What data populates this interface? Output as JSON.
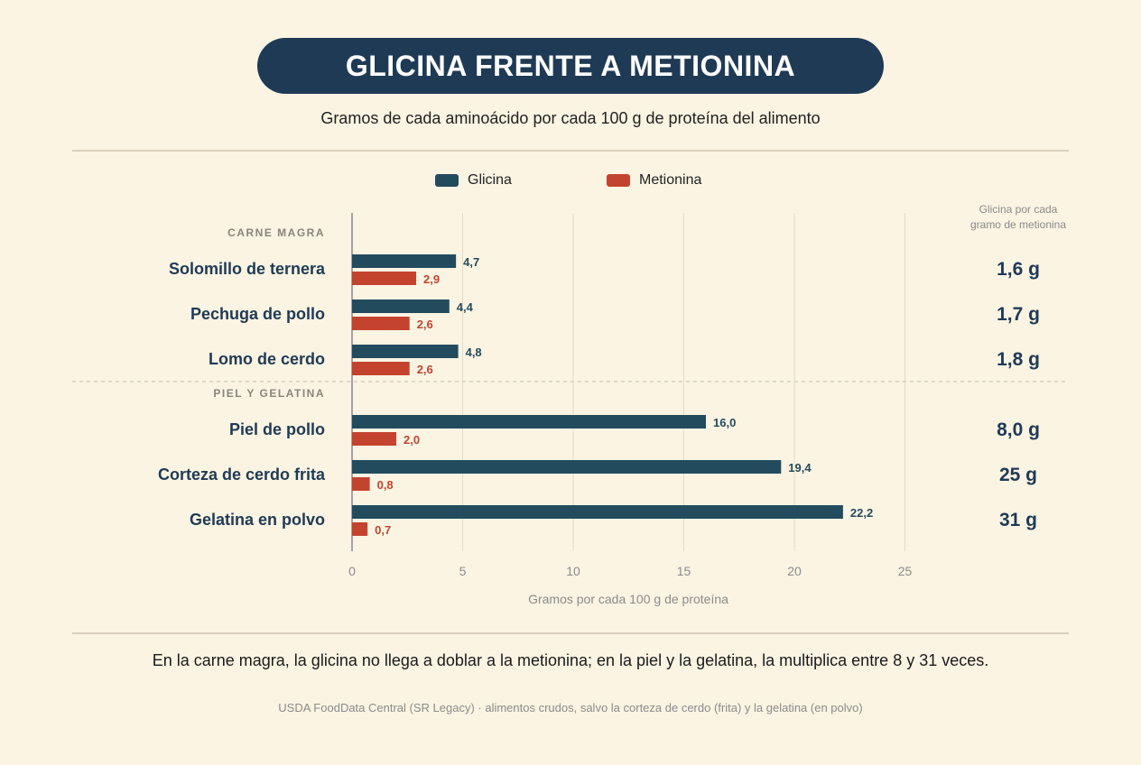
{
  "title": "GLICINA FRENTE A METIONINA",
  "subtitle": "Gramos de cada aminoácido por cada 100 g de proteína del alimento",
  "legend": {
    "glycine": "Glicina",
    "methionine": "Metionina"
  },
  "ratio_header_line1": "Glicina por cada",
  "ratio_header_line2": "gramo de metionina",
  "footnote": "En la carne magra, la glicina no llega a doblar a la metionina; en la piel y la gelatina, la multiplica entre 8 y 31 veces.",
  "source": "USDA FoodData Central (SR Legacy) · alimentos crudos, salvo la corteza de cerdo (frita) y la gelatina (en polvo)",
  "colors": {
    "glycine": "#234b5e",
    "methionine": "#c4432e",
    "title_bg": "#1f3a55",
    "background": "#fbf4e3"
  },
  "chart_data": {
    "type": "bar",
    "orientation": "horizontal",
    "groups": [
      {
        "label": "CARNE MAGRA",
        "categories": [
          "Solomillo de ternera",
          "Pechuga de pollo",
          "Lomo de cerdo"
        ]
      },
      {
        "label": "PIEL Y GELATINA",
        "categories": [
          "Piel de pollo",
          "Corteza de cerdo frita",
          "Gelatina en polvo"
        ]
      }
    ],
    "categories": [
      "Solomillo de ternera",
      "Pechuga de pollo",
      "Lomo de cerdo",
      "Piel de pollo",
      "Corteza de cerdo frita",
      "Gelatina en polvo"
    ],
    "series": [
      {
        "name": "Glicina",
        "values": [
          4.7,
          4.4,
          4.8,
          16.0,
          19.4,
          22.2
        ],
        "labels": [
          "4,7",
          "4,4",
          "4,8",
          "16,0",
          "19,4",
          "22,2"
        ]
      },
      {
        "name": "Metionina",
        "values": [
          2.9,
          2.6,
          2.6,
          2.0,
          0.8,
          0.7
        ],
        "labels": [
          "2,9",
          "2,6",
          "2,6",
          "2,0",
          "0,8",
          "0,7"
        ]
      }
    ],
    "ratios": [
      "1,6 g",
      "1,7 g",
      "1,8 g",
      "8,0 g",
      "25 g",
      "31 g"
    ],
    "xlabel": "Gramos por cada 100 g de proteína",
    "xlim": [
      0,
      25
    ],
    "xticks": [
      0,
      5,
      10,
      15,
      20,
      25
    ],
    "grid": true
  }
}
